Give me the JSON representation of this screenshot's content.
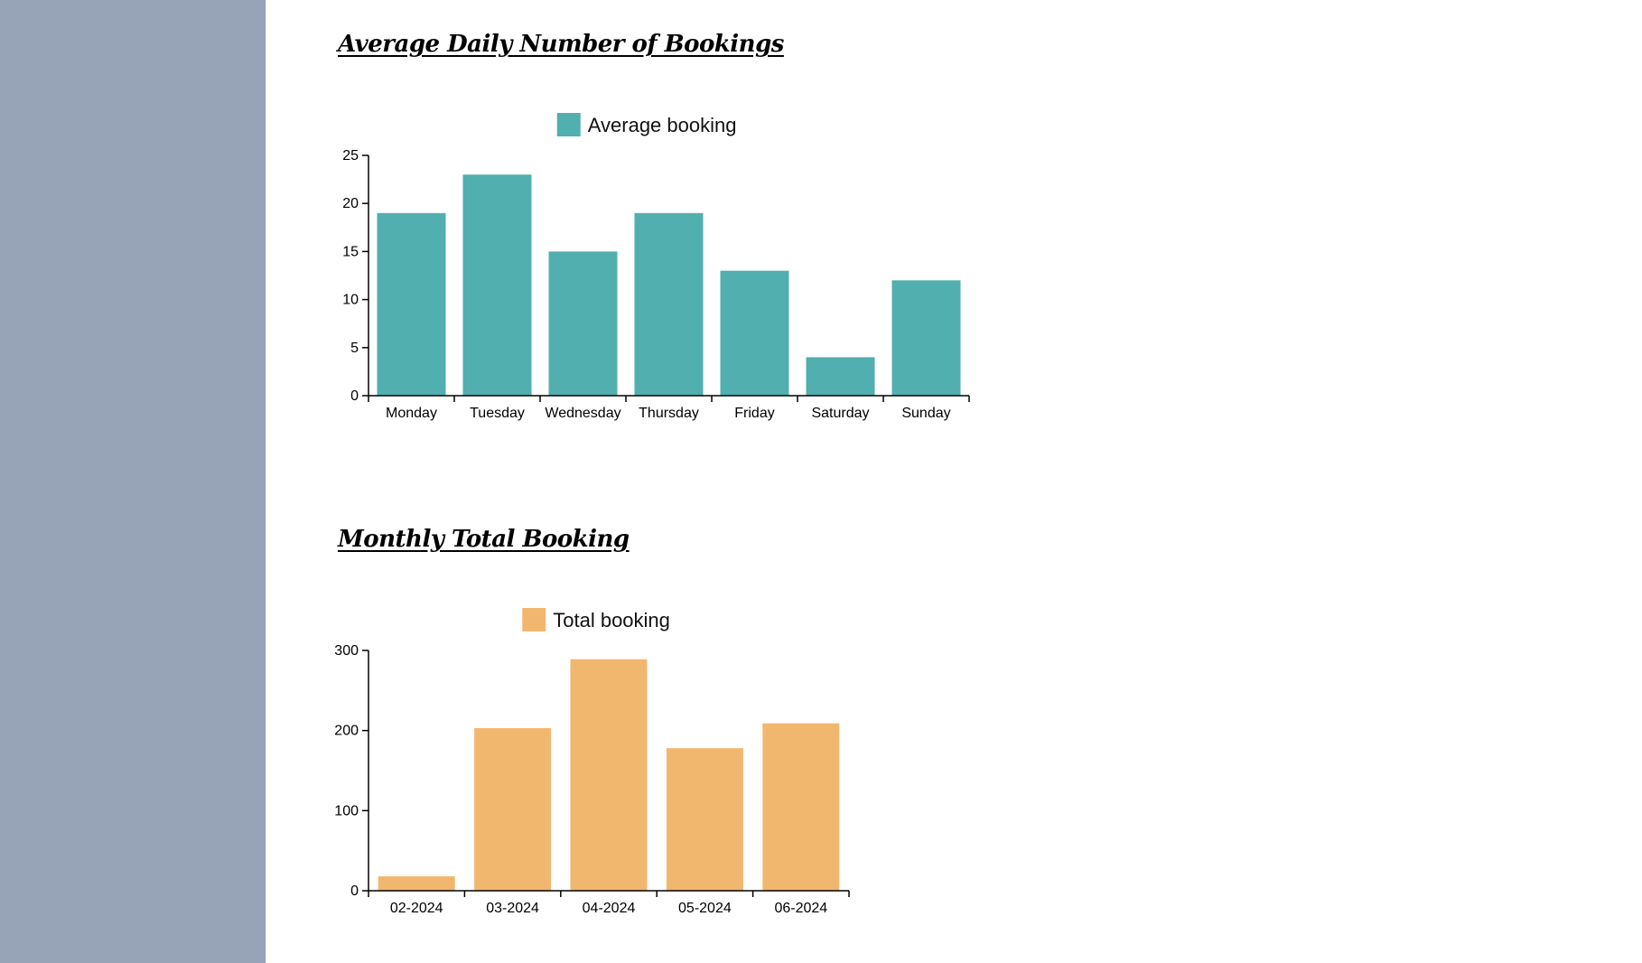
{
  "sidebar": {
    "color": "#97a3b6"
  },
  "chart_data": [
    {
      "type": "bar",
      "title": "Average Daily Number of Bookings",
      "categories": [
        "Monday",
        "Tuesday",
        "Wednesday",
        "Thursday",
        "Friday",
        "Saturday",
        "Sunday"
      ],
      "series": [
        {
          "name": "Average booking",
          "values": [
            19,
            23,
            15,
            19,
            13,
            4,
            12
          ],
          "color": "#52afaf"
        }
      ],
      "ylim": [
        0,
        25
      ],
      "yticks": [
        0,
        5,
        10,
        15,
        20,
        25
      ],
      "grid": false,
      "legend": "top"
    },
    {
      "type": "bar",
      "title": "Monthly Total Booking",
      "categories": [
        "02-2024",
        "03-2024",
        "04-2024",
        "05-2024",
        "06-2024"
      ],
      "series": [
        {
          "name": "Total booking",
          "values": [
            18,
            203,
            289,
            178,
            209
          ],
          "color": "#f2b76f"
        }
      ],
      "ylim": [
        0,
        300
      ],
      "yticks": [
        0,
        100,
        200,
        300
      ],
      "grid": false,
      "legend": "top"
    }
  ]
}
